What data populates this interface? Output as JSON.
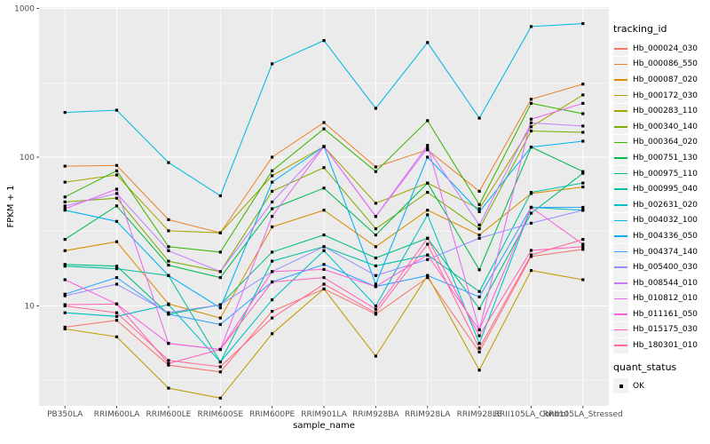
{
  "chart_data": {
    "type": "line",
    "title": "",
    "xlabel": "sample_name",
    "ylabel": "FPKM + 1",
    "y_scale": "log10",
    "y_tick_labels": [
      "1000",
      "100",
      "10"
    ],
    "y_ticks": [
      1000,
      100,
      10
    ],
    "y_minor_ticks": [
      316.2,
      31.62,
      3.162
    ],
    "ylim": [
      2.1,
      1020
    ],
    "grid": true,
    "panel_bg": "#EBEBEB",
    "grid_color": "#FFFFFF",
    "marker": "black-square",
    "marker_color": "#000000",
    "legend_position": "right",
    "legend_title": "tracking_id",
    "quant_legend": {
      "title": "quant_status",
      "items": [
        "OK"
      ]
    },
    "categories": [
      "PB350LA",
      "RRIM600LA",
      "RRIM600LE",
      "RRIM600SE",
      "RRIM600PE",
      "RRIM901LA",
      "RRIM928BA",
      "RRIM928LA",
      "RRIM928LE",
      "RRII105LA_Control",
      "RRII105LA_Stressed"
    ],
    "series": [
      {
        "name": "Hb_000024_030",
        "color": "#F8766D",
        "values": [
          7.2,
          8.0,
          4.0,
          3.6,
          9.2,
          13,
          8.8,
          15.5,
          4.9,
          21.5,
          24
        ]
      },
      {
        "name": "Hb_000086_550",
        "color": "#EA8331",
        "values": [
          87,
          88,
          38,
          31,
          100,
          171,
          86,
          112,
          59,
          245,
          310
        ]
      },
      {
        "name": "Hb_000087_020",
        "color": "#D89000",
        "values": [
          23.5,
          27,
          10.3,
          8.3,
          34,
          44,
          25,
          44,
          30,
          57,
          63
        ]
      },
      {
        "name": "Hb_000172_030",
        "color": "#C09B00",
        "values": [
          7.0,
          6.2,
          2.8,
          2.4,
          6.5,
          13,
          4.6,
          16,
          3.7,
          17.3,
          15
        ]
      },
      {
        "name": "Hb_000283_110",
        "color": "#A3A500",
        "values": [
          68,
          76,
          32,
          31,
          75,
          118,
          49,
          67,
          45,
          160,
          262
        ]
      },
      {
        "name": "Hb_000340_140",
        "color": "#7CAE00",
        "values": [
          50,
          53,
          20,
          17,
          59,
          85,
          33,
          58,
          33,
          150,
          147
        ]
      },
      {
        "name": "Hb_000364_020",
        "color": "#39B600",
        "values": [
          54,
          81,
          25,
          23,
          81,
          155,
          80,
          176,
          48,
          230,
          196
        ]
      },
      {
        "name": "Hb_000751_130",
        "color": "#00BB4E",
        "values": [
          28,
          47,
          18.8,
          15.5,
          45,
          62,
          30,
          67,
          17.5,
          117,
          80
        ]
      },
      {
        "name": "Hb_000975_110",
        "color": "#00BF7D",
        "values": [
          19,
          18.5,
          8.8,
          10.2,
          23,
          30,
          21,
          28.5,
          9.6,
          42,
          78
        ]
      },
      {
        "name": "Hb_000995_040",
        "color": "#00C1A3",
        "values": [
          18.5,
          17.8,
          16,
          4.2,
          20,
          25,
          18.6,
          22,
          12.5,
          58,
          67
        ]
      },
      {
        "name": "Hb_002631_020",
        "color": "#00BFC4",
        "values": [
          9.0,
          8.5,
          10.2,
          4.2,
          11,
          23.5,
          10,
          41,
          5.6,
          46,
          44
        ]
      },
      {
        "name": "Hb_004032_100",
        "color": "#00BAE0",
        "values": [
          200,
          207,
          92,
          55,
          424,
          608,
          213,
          590,
          183,
          755,
          790
        ]
      },
      {
        "name": "Hb_004336_050",
        "color": "#00B0F6",
        "values": [
          44,
          37,
          16,
          9.7,
          68,
          118,
          14,
          100,
          43,
          117,
          128
        ]
      },
      {
        "name": "Hb_004374_140",
        "color": "#35A2FF",
        "values": [
          12,
          15.5,
          8.8,
          7.5,
          14.5,
          19,
          13.5,
          16,
          11.5,
          46,
          46
        ]
      },
      {
        "name": "Hb_005400_030",
        "color": "#9590FF",
        "values": [
          11.7,
          14,
          9.0,
          10.2,
          17,
          25,
          16,
          20.5,
          28.5,
          36,
          44
        ]
      },
      {
        "name": "Hb_008544_010",
        "color": "#C77CFF",
        "values": [
          47,
          57,
          23.5,
          17,
          50,
          118,
          40,
          115,
          35,
          170,
          162
        ]
      },
      {
        "name": "Hb_010812_010",
        "color": "#E76BF3",
        "values": [
          45,
          61,
          5.6,
          5.1,
          40,
          118,
          40,
          120,
          6.9,
          180,
          230
        ]
      },
      {
        "name": "Hb_011161_050",
        "color": "#FA62DB",
        "values": [
          15,
          10.3,
          5.6,
          5.1,
          17,
          17.6,
          13.5,
          22,
          6.9,
          46,
          26
        ]
      },
      {
        "name": "Hb_015175_030",
        "color": "#FF62BC",
        "values": [
          10.2,
          10.3,
          4.1,
          5.1,
          14.5,
          15.5,
          9.5,
          28.5,
          6.3,
          23.6,
          25
        ]
      },
      {
        "name": "Hb_180301_010",
        "color": "#FF6A98",
        "values": [
          10,
          9.0,
          4.3,
          3.9,
          8.3,
          14,
          9.0,
          26,
          5.2,
          22,
          28
        ]
      }
    ]
  }
}
